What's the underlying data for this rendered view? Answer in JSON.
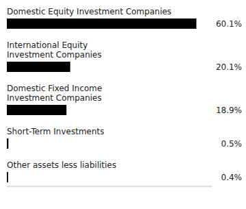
{
  "chart_data": {
    "type": "bar",
    "orientation": "horizontal",
    "categories": [
      "Domestic Equity Investment Companies",
      "International Equity\nInvestment Companies",
      "Domestic Fixed Income\nInvestment Companies",
      "Short-Term Investments",
      "Other assets less liabilities"
    ],
    "values": [
      60.1,
      20.1,
      18.9,
      0.5,
      0.4
    ],
    "value_labels": [
      "60.1%",
      "20.1%",
      "18.9%",
      "0.5%",
      "0.4%"
    ],
    "data_labels": true,
    "color": "#000000",
    "xlim": [
      0,
      65
    ],
    "tick_labels": false,
    "grid": false
  }
}
